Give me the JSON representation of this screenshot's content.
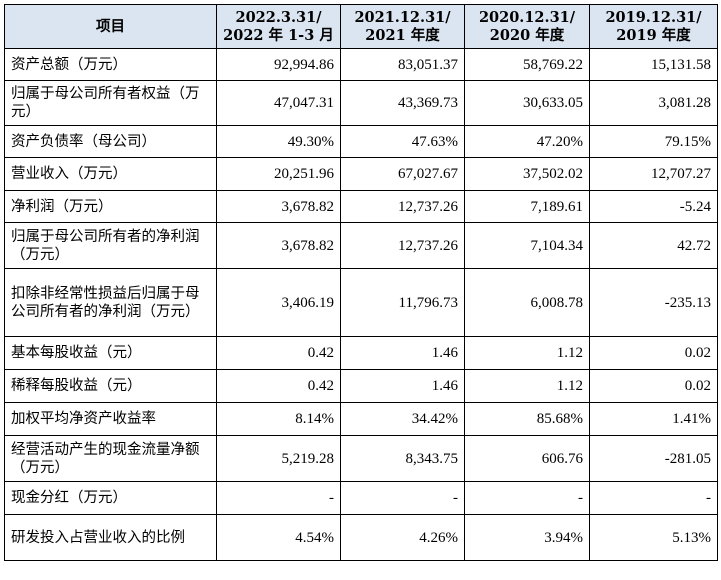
{
  "headers": [
    {
      "line1": "项目",
      "line2": ""
    },
    {
      "line1": "2022.3.31/",
      "line2": "2022 年 1-3 月"
    },
    {
      "line1": "2021.12.31/",
      "line2": "2021 年度"
    },
    {
      "line1": "2020.12.31/",
      "line2": "2020 年度"
    },
    {
      "line1": "2019.12.31/",
      "line2": "2019 年度"
    }
  ],
  "rows": [
    {
      "label": "资产总额（万元）",
      "values": [
        "92,994.86",
        "83,051.37",
        "58,769.22",
        "15,131.58"
      ]
    },
    {
      "label": "归属于母公司所有者权益（万元）",
      "values": [
        "47,047.31",
        "43,369.73",
        "30,633.05",
        "3,081.28"
      ]
    },
    {
      "label": "资产负债率（母公司）",
      "values": [
        "49.30%",
        "47.63%",
        "47.20%",
        "79.15%"
      ]
    },
    {
      "label": "营业收入（万元）",
      "values": [
        "20,251.96",
        "67,027.67",
        "37,502.02",
        "12,707.27"
      ]
    },
    {
      "label": "净利润（万元）",
      "values": [
        "3,678.82",
        "12,737.26",
        "7,189.61",
        "-5.24"
      ]
    },
    {
      "label": "归属于母公司所有者的净利润（万元）",
      "values": [
        "3,678.82",
        "12,737.26",
        "7,104.34",
        "42.72"
      ]
    },
    {
      "label": "扣除非经常性损益后归属于母公司所有者的净利润（万元）",
      "values": [
        "3,406.19",
        "11,796.73",
        "6,008.78",
        "-235.13"
      ]
    },
    {
      "label": "基本每股收益（元）",
      "values": [
        "0.42",
        "1.46",
        "1.12",
        "0.02"
      ]
    },
    {
      "label": "稀释每股收益（元）",
      "values": [
        "0.42",
        "1.46",
        "1.12",
        "0.02"
      ]
    },
    {
      "label": "加权平均净资产收益率",
      "values": [
        "8.14%",
        "34.42%",
        "85.68%",
        "1.41%"
      ]
    },
    {
      "label": "经营活动产生的现金流量净额（万元）",
      "values": [
        "5,219.28",
        "8,343.75",
        "606.76",
        "-281.05"
      ]
    },
    {
      "label": "现金分红（万元）",
      "values": [
        "-",
        "-",
        "-",
        "-"
      ]
    },
    {
      "label": "研发投入占营业收入的比例",
      "values": [
        "4.54%",
        "4.26%",
        "3.94%",
        "5.13%"
      ]
    }
  ]
}
